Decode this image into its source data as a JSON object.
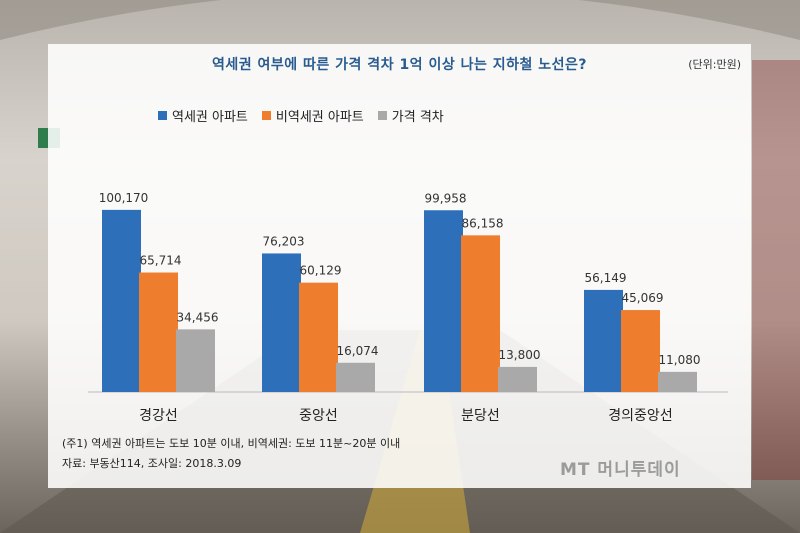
{
  "chart_data": {
    "type": "bar",
    "title": "역세권 여부에 따른 가격 격차 1억 이상 나는 지하철 노선은?",
    "unit": "(단위:만원)",
    "categories": [
      "경강선",
      "중앙선",
      "분당선",
      "경의중앙선"
    ],
    "series": [
      {
        "name": "역세권 아파트",
        "values": [
          100170,
          76203,
          99958,
          56149
        ],
        "labels": [
          "100,170",
          "76,203",
          "99,958",
          "56,149"
        ],
        "color": "#2e6fba"
      },
      {
        "name": "비역세권 아파트",
        "values": [
          65714,
          60129,
          86158,
          45069
        ],
        "labels": [
          "65,714",
          "60,129",
          "86,158",
          "45,069"
        ],
        "color": "#ee7d2e"
      },
      {
        "name": "가격 격차",
        "values": [
          34456,
          16074,
          13800,
          11080
        ],
        "labels": [
          "34,456",
          "16,074",
          "13,800",
          "11,080"
        ],
        "color": "#a9a9a9"
      }
    ],
    "ylim": [
      0,
      110000
    ],
    "grid": false,
    "legend_position": "top-left"
  },
  "notes": {
    "line1": "(주1) 역세권 아파트는 도보 10분 이내, 비역세권: 도보 11분~20분 이내",
    "line2": "자료: 부동산114, 조사일: 2018.3.09"
  },
  "watermark": "MT 머니투데이"
}
